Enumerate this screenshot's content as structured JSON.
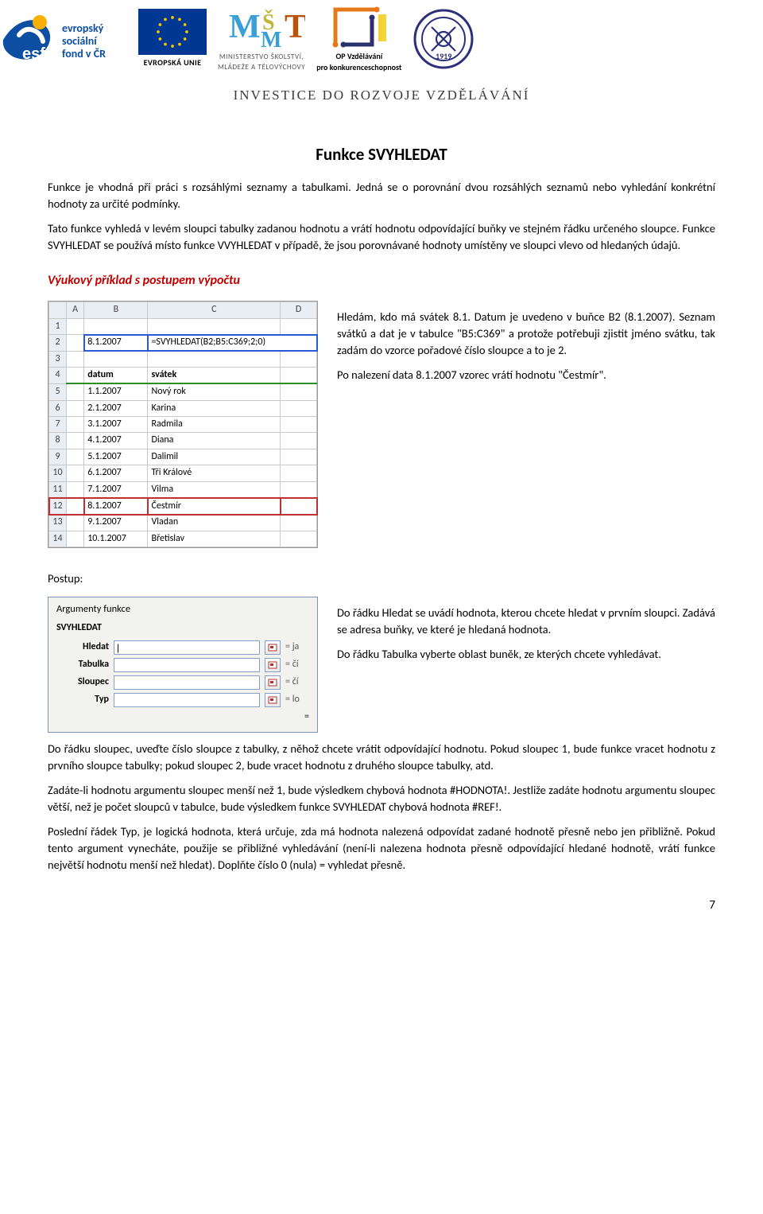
{
  "header": {
    "tagline": "INVESTICE DO ROZVOJE VZDĚLÁVÁNÍ",
    "logos": {
      "esf": {
        "label1": "evropský",
        "label2": "sociální",
        "label3": "fond v ČR",
        "color": "#0b4ea2",
        "star_color": "#f9b000"
      },
      "eu": {
        "label": "EVROPSKÁ UNIE",
        "blue": "#003793",
        "gold": "#f8c400"
      },
      "msmt": {
        "line1": "MINISTERSTVO ŠKOLSTVÍ,",
        "line2": "MLÁDEŽE A TĚLOVÝCHOVY",
        "m_color": "#3a9ed7",
        "s_color": "#bfb63b",
        "t_color": "#b8530b"
      },
      "opvk": {
        "line1": "OP Vzdělávání",
        "line2": "pro konkurenceschopnost",
        "frame": "#e77817",
        "inner": "#2c2f6e"
      },
      "guild": {
        "ring": "#2c2f7a",
        "year": "1919"
      }
    }
  },
  "title": "Funkce SVYHLEDAT",
  "paragraphs": {
    "p1": "Funkce je vhodná při práci s rozsáhlými seznamy a tabulkami. Jedná se o porovnání dvou rozsáhlých seznamů nebo vyhledání konkrétní hodnoty za určité podmínky.",
    "p2": "Tato funkce vyhledá v levém sloupci tabulky zadanou hodnotu a vrátí hodnotu odpovídající buňky ve stejném řádku určeného sloupce. Funkce SVYHLEDAT se používá místo funkce VVYHLEDAT v případě, že jsou porovnávané hodnoty umístěny ve sloupci vlevo od hledaných údajů."
  },
  "section_heading": "Výukový příklad s postupem výpočtu",
  "example": {
    "right_p1": "Hledám, kdo má svátek 8.1. Datum je uvedeno v buňce B2 (8.1.2007). Seznam svátků a dat je v tabulce \"B5:C369\" a protože potřebuji zjistit jméno svátku, tak zadám do vzorce pořadové číslo sloupce a to je 2.",
    "right_p2": "Po nalezení data 8.1.2007 vzorec vrátí hodnotu \"Čestmír\"."
  },
  "sheet1": {
    "columns": [
      "",
      "A",
      "B",
      "C",
      "D"
    ],
    "formula_cell": "=SVYHLEDAT(B2;B5:C369;2;0)",
    "b2": "8.1.2007",
    "hdr_b": "datum",
    "hdr_c": "svátek",
    "rows": [
      {
        "n": "5",
        "b": "1.1.2007",
        "c": "Nový rok"
      },
      {
        "n": "6",
        "b": "2.1.2007",
        "c": "Karina"
      },
      {
        "n": "7",
        "b": "3.1.2007",
        "c": "Radmila"
      },
      {
        "n": "8",
        "b": "4.1.2007",
        "c": "Diana"
      },
      {
        "n": "9",
        "b": "5.1.2007",
        "c": "Dalimil"
      },
      {
        "n": "10",
        "b": "6.1.2007",
        "c": "Tři Králové"
      },
      {
        "n": "11",
        "b": "7.1.2007",
        "c": "Vilma"
      },
      {
        "n": "12",
        "b": "8.1.2007",
        "c": "Čestmír"
      },
      {
        "n": "13",
        "b": "9.1.2007",
        "c": "Vladan"
      },
      {
        "n": "14",
        "b": "10.1.2007",
        "c": "Břetislav"
      }
    ]
  },
  "postup_label": "Postup:",
  "argdlg": {
    "title": "Argumenty funkce",
    "fnname": "SVYHLEDAT",
    "items": [
      {
        "label": "Hledat",
        "hint": "ja"
      },
      {
        "label": "Tabulka",
        "hint": "čí"
      },
      {
        "label": "Sloupec",
        "hint": "čí"
      },
      {
        "label": "Typ",
        "hint": "lo"
      }
    ]
  },
  "postup": {
    "r1": "Do řádku Hledat se uvádí hodnota, kterou chcete hledat v prvním sloupci. Zadává se adresa buňky, ve které je hledaná hodnota.",
    "r2": "Do řádku Tabulka vyberte oblast buněk, ze kterých chcete vyhledávat.",
    "r3_full": "Do řádku sloupec, uveďte číslo sloupce z tabulky, z něhož chcete vrátit odpovídající hodnotu. Pokud sloupec 1, bude funkce vracet hodnotu z prvního sloupce tabulky; pokud sloupec 2, bude vracet hodnotu z druhého sloupce tabulky, atd.",
    "r4": "Zadáte-li hodnotu argumentu sloupec menší než 1, bude výsledkem chybová hodnota #HODNOTA!. Jestliže zadáte hodnotu argumentu sloupec větší, než je počet sloupců v tabulce, bude výsledkem funkce SVYHLEDAT chybová hodnota #REF!.",
    "r5": "Poslední řádek Typ, je logická hodnota, která určuje, zda má hodnota nalezená odpovídat zadané hodnotě přesně nebo jen přibližně. Pokud tento argument vynecháte, použije se přibližné vyhledávání (není-li nalezena hodnota přesně odpovídající hledané hodnotě, vrátí funkce největší hodnotu menší než hledat). Doplňte číslo 0 (nula) = vyhledat přesně."
  },
  "page_number": "7",
  "colors": {
    "heading_red": "#c00000",
    "grid": "#c9c9c9",
    "colhead": "#e9edf4",
    "sel_blue": "#2a5bd7",
    "green_border": "#2a8f2a",
    "red_border": "#c03030"
  }
}
